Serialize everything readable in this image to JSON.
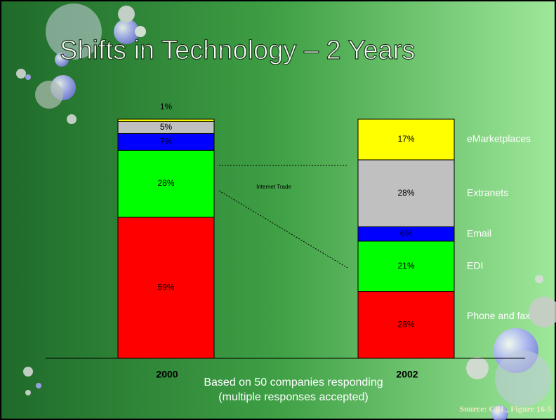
{
  "chart_data": {
    "type": "stacked_bar",
    "title": "Shifts in Technology – 2 Years",
    "categories": [
      "2000",
      "2002"
    ],
    "series": [
      {
        "name": "Phone and fax",
        "color": "#ff0000",
        "values": [
          59,
          28
        ],
        "value_labels": [
          "59%",
          "28%"
        ]
      },
      {
        "name": "EDI",
        "color": "#00ff00",
        "values": [
          28,
          21
        ],
        "value_labels": [
          "28%",
          "21%"
        ]
      },
      {
        "name": "Email",
        "color": "#0000ff",
        "values": [
          7,
          6
        ],
        "value_labels": [
          "7%",
          "6%"
        ]
      },
      {
        "name": "Extranets",
        "color": "#c0c0c0",
        "values": [
          5,
          28
        ],
        "value_labels": [
          "5%",
          "28%"
        ]
      },
      {
        "name": "eMarketplaces",
        "color": "#ffff00",
        "values": [
          1,
          17
        ],
        "value_labels": [
          "1%",
          "17%"
        ]
      }
    ],
    "annotations": [
      "Internet Trade",
      "Based on 50 companies responding",
      "(multiple responses accepted)",
      "Source: CBL, Figure 16-5"
    ]
  }
}
